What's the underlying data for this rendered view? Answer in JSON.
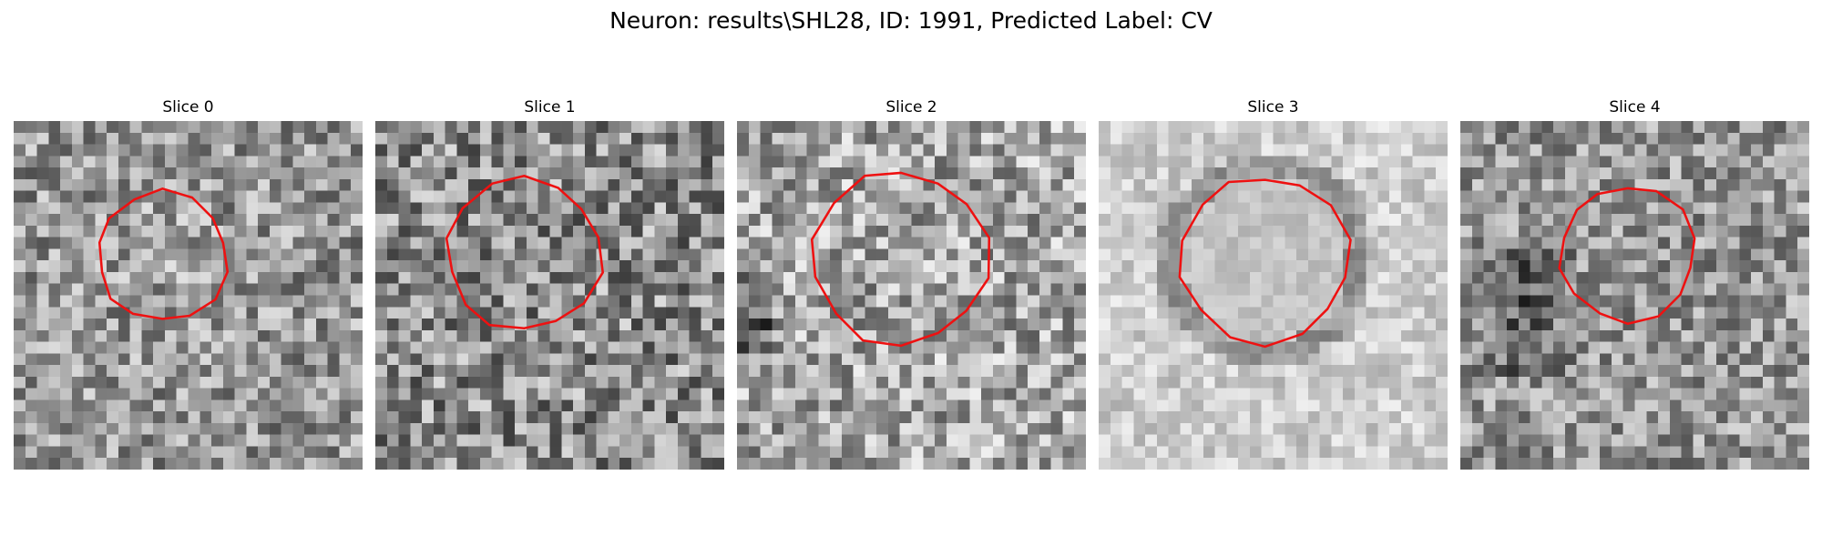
{
  "figure": {
    "title": "Neuron: results\\SHL28, ID: 1991, Predicted Label: CV"
  },
  "panels": [
    {
      "title": "Slice 0",
      "contour_color": "#ee1111"
    },
    {
      "title": "Slice 1",
      "contour_color": "#ee1111"
    },
    {
      "title": "Slice 2",
      "contour_color": "#ee1111"
    },
    {
      "title": "Slice 3",
      "contour_color": "#ee1111"
    },
    {
      "title": "Slice 4",
      "contour_color": "#ee1111"
    }
  ]
}
